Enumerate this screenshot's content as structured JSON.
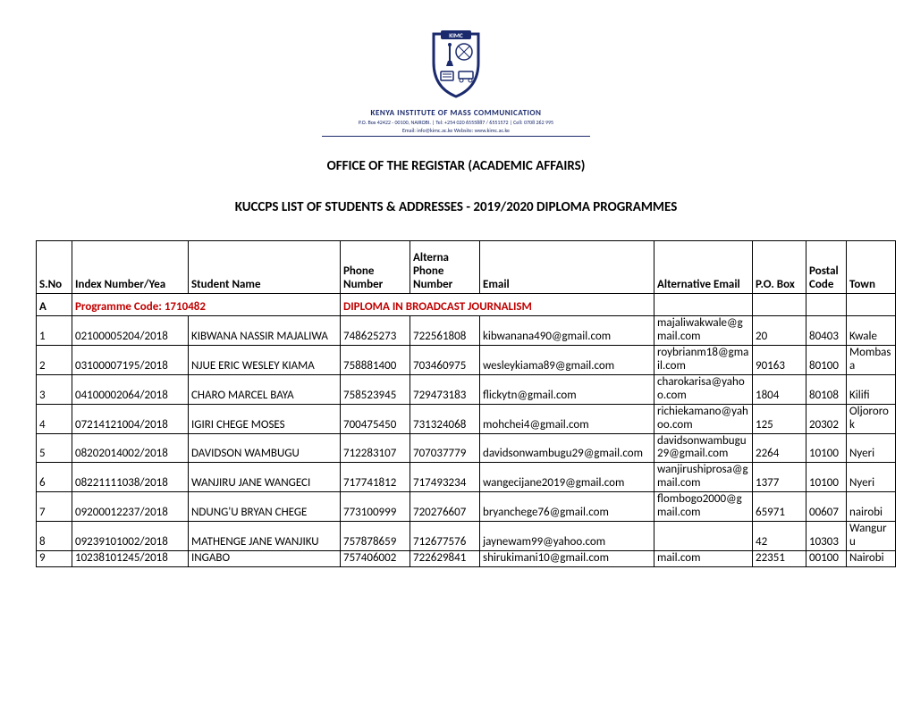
{
  "institution": {
    "name": "KENYA INSTITUTE OF MASS COMMUNICATION",
    "line1": "P.O. Box 42422 - 00100, NAIROBI. | Tel: +254 020 6555887 / 6551572 | Cell: 0708 262 995",
    "line2": "Email: info@kimc.ac.ke Website: www.kimc.ac.ke"
  },
  "headings": {
    "office": "OFFICE OF THE REGISTAR (ACADEMIC AFFAIRS)",
    "list": "KUCCPS LIST OF STUDENTS & ADDRESSES - 2019/2020 DIPLOMA PROGRAMMES"
  },
  "columns": {
    "sno": "S.No",
    "index": "Index Number/Yea",
    "name": "Student Name",
    "phone": "Phone Number",
    "altphone": "Alterna Phone Number",
    "email": "Email",
    "aemail": "Alternative Email",
    "pobox": "P.O. Box",
    "postal": "Postal Code",
    "town": "Town"
  },
  "section": {
    "letter": "A",
    "code_label": "Programme Code: 1710482",
    "prog_name": "DIPLOMA IN BROADCAST JOURNALISM"
  },
  "rows": [
    {
      "sno": "1",
      "index": "02100005204/2018",
      "name": "KIBWANA NASSIR MAJALIWA",
      "phone": "748625273",
      "alt": "722561808",
      "email": "kibwanana490@gmail.com",
      "aemail": "majaliwakwale@gmail.com",
      "pobox": "20",
      "postal": "80403",
      "town": "Kwale"
    },
    {
      "sno": "2",
      "index": "03100007195/2018",
      "name": "NJUE ERIC WESLEY KIAMA",
      "phone": "758881400",
      "alt": "703460975",
      "email": "wesleykiama89@gmail.com",
      "aemail": "roybrianm18@gmail.com",
      "pobox": "90163",
      "postal": "80100",
      "town": "Mombasa"
    },
    {
      "sno": "3",
      "index": "04100002064/2018",
      "name": "CHARO MARCEL BAYA",
      "phone": "758523945",
      "alt": "729473183",
      "email": "flickytn@gmail.com",
      "aemail": "charokarisa@yahoo.com",
      "pobox": "1804",
      "postal": "80108",
      "town": "Kilifi"
    },
    {
      "sno": "4",
      "index": "07214121004/2018",
      "name": "IGIRI CHEGE MOSES",
      "phone": "700475450",
      "alt": "731324068",
      "email": "mohchei4@gmail.com",
      "aemail": "richiekamano@yahoo.com",
      "pobox": "125",
      "postal": "20302",
      "town": "Oljororok"
    },
    {
      "sno": "5",
      "index": "08202014002/2018",
      "name": "DAVIDSON WAMBUGU",
      "phone": "712283107",
      "alt": "707037779",
      "email": "davidsonwambugu29@gmail.com",
      "aemail": "davidsonwambugu29@gmail.com",
      "pobox": "2264",
      "postal": "10100",
      "town": "Nyeri"
    },
    {
      "sno": "6",
      "index": "08221111038/2018",
      "name": "WANJIRU JANE WANGECI",
      "phone": "717741812",
      "alt": "717493234",
      "email": "wangecijane2019@gmail.com",
      "aemail": "wanjirushiprosa@gmail.com",
      "pobox": "1377",
      "postal": "10100",
      "town": "Nyeri"
    },
    {
      "sno": "7",
      "index": "09200012237/2018",
      "name": "NDUNG'U BRYAN CHEGE",
      "phone": "773100999",
      "alt": "720276607",
      "email": "bryanchege76@gmail.com",
      "aemail": "flombogo2000@gmail.com",
      "pobox": "65971",
      "postal": "00607",
      "town": "nairobi"
    },
    {
      "sno": "8",
      "index": "09239101002/2018",
      "name": "MATHENGE JANE WANJIKU",
      "phone": "757878659",
      "alt": "712677576",
      "email": "jaynewam99@yahoo.com",
      "aemail": "",
      "pobox": "42",
      "postal": "10303",
      "town": "Wanguru"
    },
    {
      "sno": "9",
      "index": "10238101245/2018",
      "name": "INGABO",
      "phone": "757406002",
      "alt": "722629841",
      "email": "shirukimani10@gmail.com",
      "aemail": "mail.com",
      "pobox": "22351",
      "postal": "00100",
      "town": "Nairobi"
    }
  ],
  "style": {
    "accent_red": "#c00000",
    "logo_blue": "#1a2a6c",
    "logo_gray": "#a9a9a9"
  }
}
